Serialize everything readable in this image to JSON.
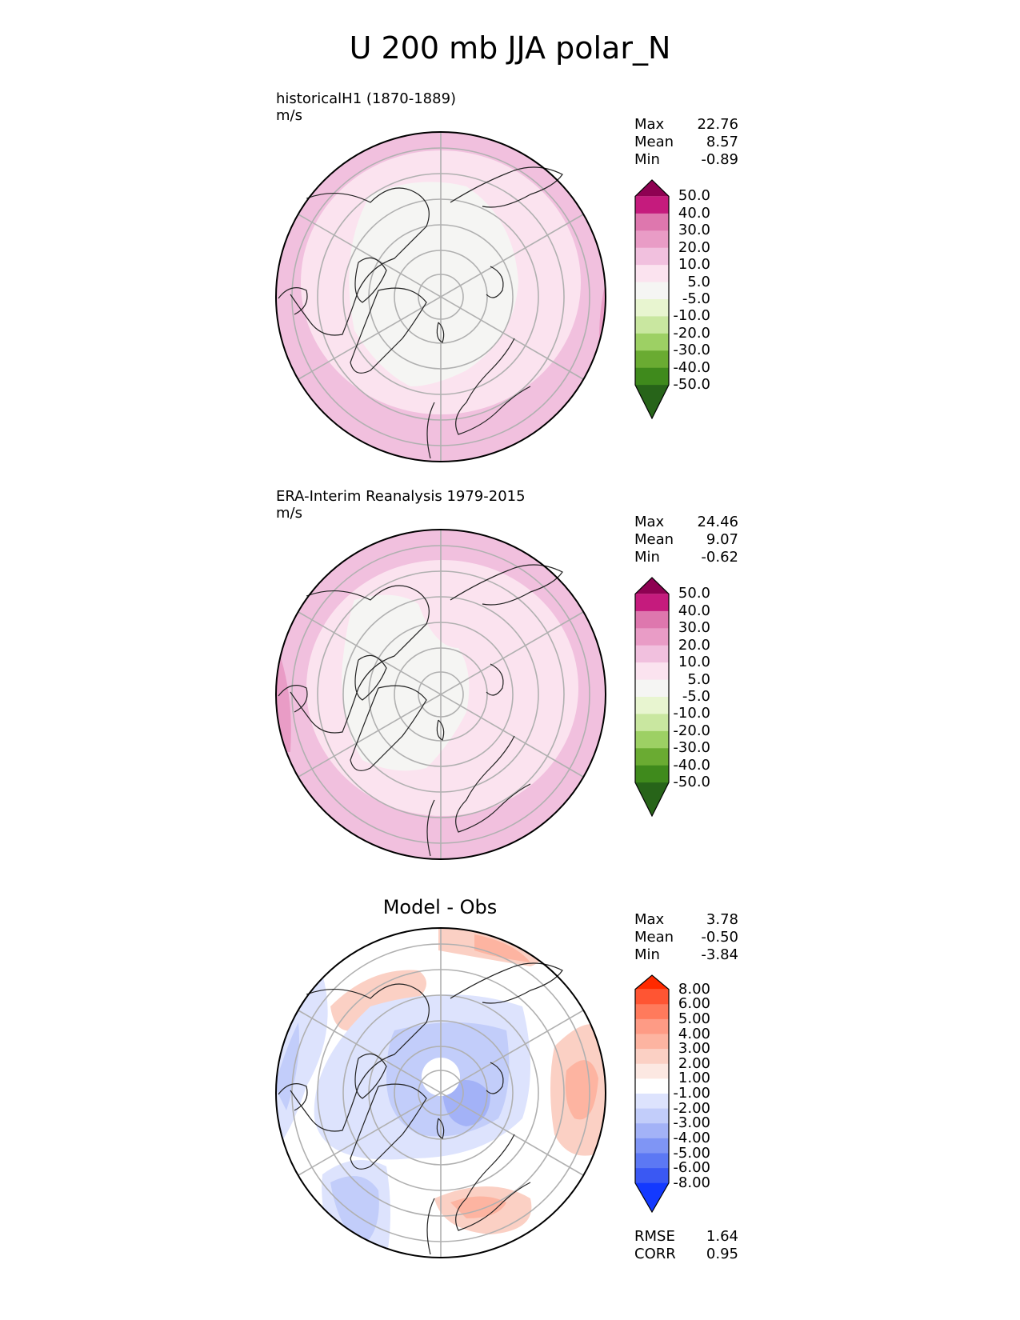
{
  "title": "U 200 mb JJA polar_N",
  "panels": [
    {
      "label": "historicalH1 (1870-1889)",
      "units": "m/s",
      "stats": [
        {
          "name": "Max",
          "value": "22.76"
        },
        {
          "name": "Mean",
          "value": "8.57"
        },
        {
          "name": "Min",
          "value": "-0.89"
        }
      ],
      "colorbar": {
        "ticks": [
          "50.0",
          "40.0",
          "30.0",
          "20.0",
          "10.0",
          "5.0",
          "-5.0",
          "-10.0",
          "-20.0",
          "-30.0",
          "-40.0",
          "-50.0"
        ],
        "colors": [
          "#8e0152",
          "#c51b7d",
          "#de77ae",
          "#e99cc6",
          "#f1c0de",
          "#fbe3ef",
          "#f5f5f3",
          "#e8f5d0",
          "#c9e7a0",
          "#9dd064",
          "#6aab32",
          "#3f8a1c",
          "#276419"
        ]
      }
    },
    {
      "label": "ERA-Interim Reanalysis 1979-2015",
      "units": "m/s",
      "stats": [
        {
          "name": "Max",
          "value": "24.46"
        },
        {
          "name": "Mean",
          "value": "9.07"
        },
        {
          "name": "Min",
          "value": "-0.62"
        }
      ],
      "colorbar": {
        "ticks": [
          "50.0",
          "40.0",
          "30.0",
          "20.0",
          "10.0",
          "5.0",
          "-5.0",
          "-10.0",
          "-20.0",
          "-30.0",
          "-40.0",
          "-50.0"
        ],
        "colors": [
          "#8e0152",
          "#c51b7d",
          "#de77ae",
          "#e99cc6",
          "#f1c0de",
          "#fbe3ef",
          "#f5f5f3",
          "#e8f5d0",
          "#c9e7a0",
          "#9dd064",
          "#6aab32",
          "#3f8a1c",
          "#276419"
        ]
      }
    },
    {
      "label": "Model - Obs",
      "stats": [
        {
          "name": "Max",
          "value": "3.78"
        },
        {
          "name": "Mean",
          "value": "-0.50"
        },
        {
          "name": "Min",
          "value": "-3.84"
        }
      ],
      "colorbar": {
        "ticks": [
          "8.00",
          "6.00",
          "5.00",
          "4.00",
          "3.00",
          "2.00",
          "1.00",
          "-1.00",
          "-2.00",
          "-3.00",
          "-4.00",
          "-5.00",
          "-6.00",
          "-8.00"
        ],
        "colors": [
          "#ff2a00",
          "#ff5533",
          "#ff7a5c",
          "#fe9b85",
          "#fdb4a1",
          "#fbd0c4",
          "#fce8e2",
          "#ffffff",
          "#dde3fd",
          "#c2cdfa",
          "#a3b2f7",
          "#7f95f5",
          "#5c78f4",
          "#3a58f3",
          "#1339ff"
        ]
      },
      "summary": [
        {
          "name": "RMSE",
          "value": "1.64"
        },
        {
          "name": "CORR",
          "value": "0.95"
        }
      ]
    }
  ],
  "chart_data": [
    {
      "type": "heatmap",
      "title": "historicalH1 (1870-1889)",
      "units": "m/s",
      "projection": "north polar stereographic",
      "max": 22.76,
      "mean": 8.57,
      "min": -0.89,
      "levels": [
        -50,
        -40,
        -30,
        -20,
        -10,
        -5,
        5,
        10,
        20,
        30,
        40,
        50
      ]
    },
    {
      "type": "heatmap",
      "title": "ERA-Interim Reanalysis 1979-2015",
      "units": "m/s",
      "projection": "north polar stereographic",
      "max": 24.46,
      "mean": 9.07,
      "min": -0.62,
      "levels": [
        -50,
        -40,
        -30,
        -20,
        -10,
        -5,
        5,
        10,
        20,
        30,
        40,
        50
      ]
    },
    {
      "type": "heatmap",
      "title": "Model - Obs",
      "projection": "north polar stereographic",
      "max": 3.78,
      "mean": -0.5,
      "min": -3.84,
      "rmse": 1.64,
      "corr": 0.95,
      "levels": [
        -8,
        -6,
        -5,
        -4,
        -3,
        -2,
        -1,
        1,
        2,
        3,
        4,
        5,
        6,
        8
      ]
    }
  ]
}
